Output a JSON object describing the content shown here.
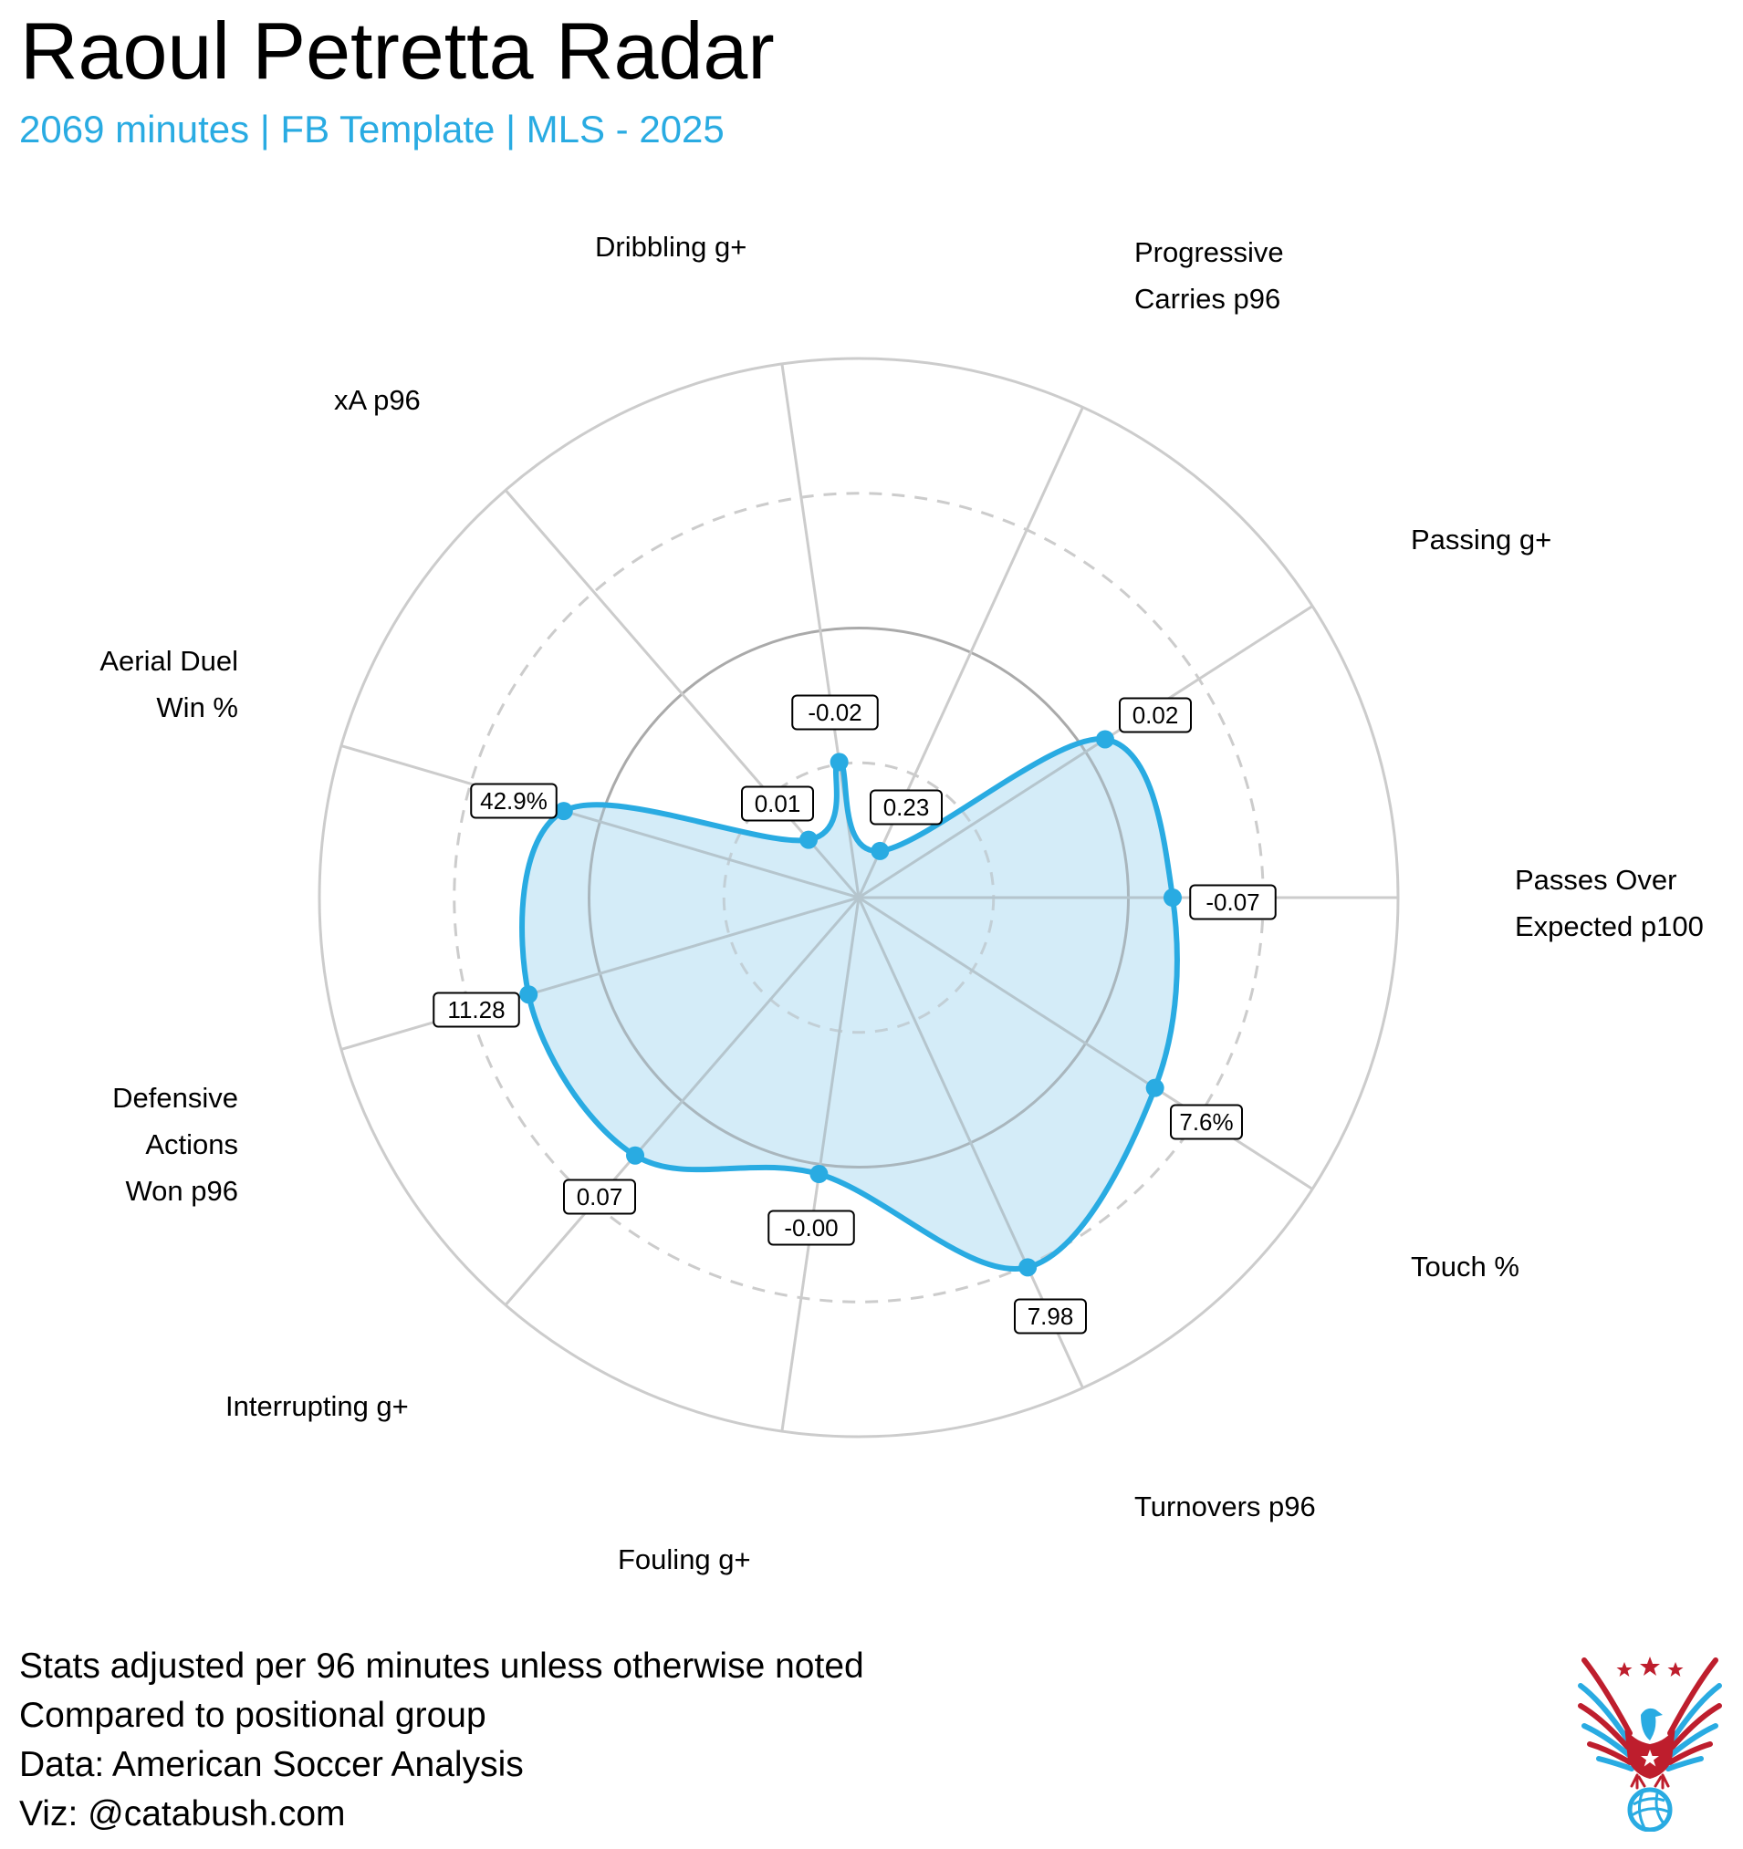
{
  "header": {
    "title": "Raoul Petretta Radar",
    "subtitle": "2069 minutes | FB Template | MLS - 2025"
  },
  "footer": {
    "lines": [
      "Stats adjusted per 96 minutes unless otherwise noted",
      "Compared to positional group",
      "Data: American Soccer Analysis",
      "Viz: @catabush.com"
    ]
  },
  "colors": {
    "accent": "#29ABE2",
    "fill": "#D4ECF8",
    "grid": "#CCCCCC",
    "grid_inner": "#B5C5CD",
    "mid_ring": "#AAAAAA",
    "logo_red": "#BE1E2D",
    "logo_blue": "#29ABE2"
  },
  "logo": {
    "name": "eagle-soccer-ball-logo"
  },
  "chart_data": {
    "type": "radar",
    "title": "Raoul Petretta Radar",
    "subtitle": "2069 minutes | FB Template | MLS - 2025",
    "scale": "percentile (0-1), rings at 0.25 / 0.5 / 0.75 / 1.0",
    "rings": [
      0.25,
      0.5,
      0.75,
      1.0
    ],
    "categories": [
      "Passes Over Expected p100",
      "Touch %",
      "Turnovers p96",
      "Fouling g+",
      "Interrupting g+",
      "Defensive Actions Won p96",
      "Aerial Duel Win %",
      "xA p96",
      "Dribbling g+",
      "Progressive Carries p96",
      "Passing g+"
    ],
    "series": [
      {
        "name": "Raoul Petretta",
        "labels": [
          "-0.07",
          "7.6%",
          "7.98",
          "-0.00",
          "0.07",
          "11.28",
          "42.9%",
          "0.01",
          "-0.02",
          "0.23",
          "0.02"
        ],
        "values": [
          0.58,
          0.65,
          0.75,
          0.52,
          0.63,
          0.64,
          0.57,
          0.14,
          0.25,
          0.1,
          0.54
        ]
      }
    ],
    "axes": [
      {
        "label_lines": [
          "Passes Over",
          "Expected p100"
        ],
        "angle": 90.0,
        "value": 0.582,
        "display": "-0.07",
        "box": [
          1351,
          989
        ]
      },
      {
        "label_lines": [
          "Touch %"
        ],
        "angle": 122.73,
        "value": 0.653,
        "display": "7.6%",
        "box": [
          1322,
          1230
        ]
      },
      {
        "label_lines": [
          "Turnovers p96"
        ],
        "angle": 155.45,
        "value": 0.754,
        "display": "7.98",
        "box": [
          1151,
          1443
        ]
      },
      {
        "label_lines": [
          "Fouling g+"
        ],
        "angle": 188.18,
        "value": 0.518,
        "display": "-0.00",
        "box": [
          889,
          1346
        ]
      },
      {
        "label_lines": [
          "Interrupting g+"
        ],
        "angle": 220.91,
        "value": 0.633,
        "display": "0.07",
        "box": [
          657,
          1312
        ]
      },
      {
        "label_lines": [
          "Defensive",
          "Actions",
          "Won p96"
        ],
        "angle": 253.64,
        "value": 0.638,
        "display": "11.28",
        "box": [
          522,
          1107
        ]
      },
      {
        "label_lines": [
          "Aerial Duel",
          "Win %"
        ],
        "angle": 286.36,
        "value": 0.57,
        "display": "42.9%",
        "box": [
          563,
          878
        ]
      },
      {
        "label_lines": [
          "xA p96"
        ],
        "angle": 319.09,
        "value": 0.142,
        "display": "0.01",
        "box": [
          852,
          881
        ]
      },
      {
        "label_lines": [
          "Dribbling g+"
        ],
        "angle": 351.82,
        "value": 0.254,
        "display": "-0.02",
        "box": [
          915,
          781
        ]
      },
      {
        "label_lines": [
          "Progressive",
          "Carries p96"
        ],
        "angle": 24.55,
        "value": 0.095,
        "display": "0.23",
        "box": [
          993,
          885
        ]
      },
      {
        "label_lines": [
          "Passing g+"
        ],
        "angle": 57.27,
        "value": 0.543,
        "display": "0.02",
        "box": [
          1266,
          784
        ]
      }
    ],
    "legend": "none",
    "grid": true
  },
  "axis_labels": {
    "dribbling": "Dribbling g+",
    "progressive_1": "Progressive",
    "progressive_2": "Carries p96",
    "passing": "Passing g+",
    "passes_over_1": "Passes Over",
    "passes_over_2": "Expected p100",
    "touch": "Touch %",
    "turnovers": "Turnovers p96",
    "fouling": "Fouling g+",
    "interrupting": "Interrupting g+",
    "defensive_1": "Defensive",
    "defensive_2": "Actions",
    "defensive_3": "Won p96",
    "aerial_1": "Aerial Duel",
    "aerial_2": "Win %",
    "xa": "xA p96"
  }
}
